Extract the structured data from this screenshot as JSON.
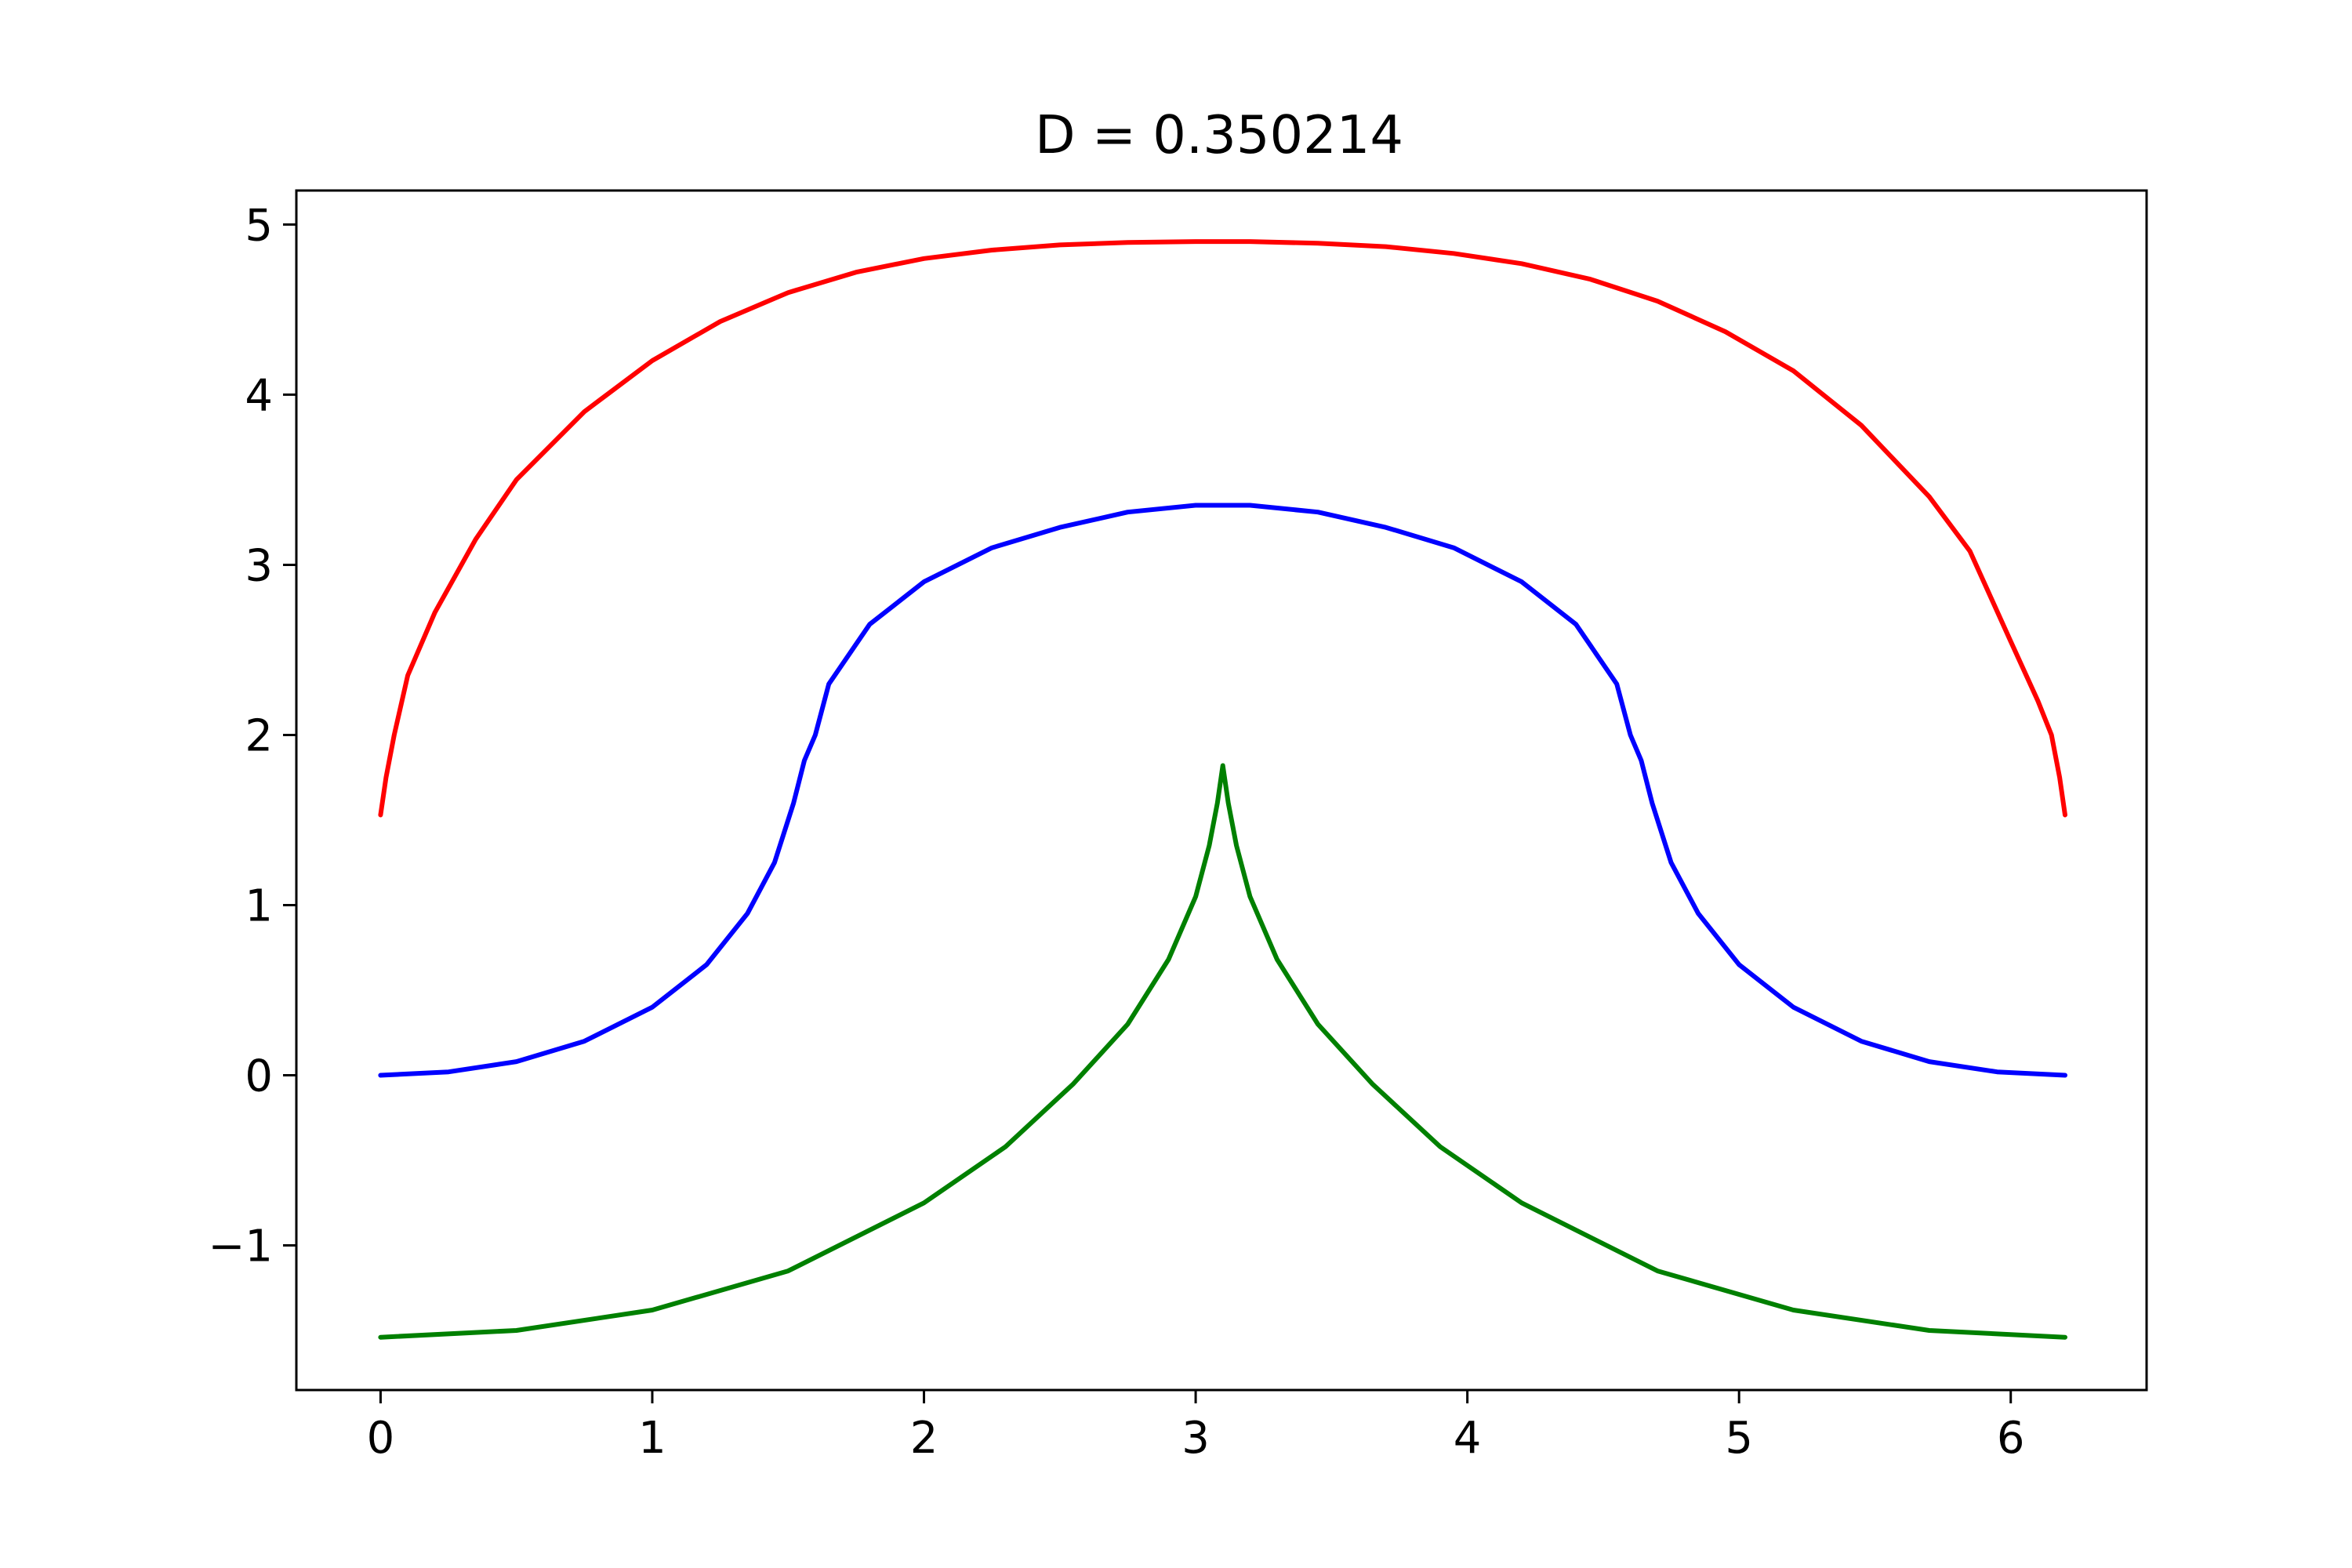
{
  "chart_data": {
    "type": "line",
    "title": "D = 0.350214",
    "xlabel": "",
    "ylabel": "",
    "xlim": [
      -0.31,
      6.5
    ],
    "ylim": [
      -1.85,
      5.2
    ],
    "x_ticks": [
      0,
      1,
      2,
      3,
      4,
      5,
      6
    ],
    "x_tick_labels": [
      "0",
      "1",
      "2",
      "3",
      "4",
      "5",
      "6"
    ],
    "y_ticks": [
      -1,
      0,
      1,
      2,
      3,
      4,
      5
    ],
    "y_tick_labels": [
      "−1",
      "0",
      "1",
      "2",
      "3",
      "4",
      "5"
    ],
    "grid": false,
    "legend": "none",
    "series": [
      {
        "color": "#ff0000",
        "x": [
          0,
          0.02,
          0.05,
          0.1,
          0.2,
          0.35,
          0.5,
          0.75,
          1.0,
          1.25,
          1.5,
          1.75,
          2.0,
          2.25,
          2.5,
          2.75,
          3.0,
          3.1,
          3.2,
          3.45,
          3.7,
          3.95,
          4.2,
          4.45,
          4.7,
          4.95,
          5.2,
          5.45,
          5.7,
          5.85,
          6.0,
          6.1,
          6.15,
          6.18,
          6.2
        ],
        "y": [
          1.53,
          1.75,
          2.0,
          2.35,
          2.72,
          3.15,
          3.5,
          3.9,
          4.2,
          4.43,
          4.6,
          4.72,
          4.8,
          4.85,
          4.88,
          4.895,
          4.9,
          4.9,
          4.9,
          4.89,
          4.87,
          4.83,
          4.77,
          4.68,
          4.55,
          4.37,
          4.14,
          3.82,
          3.4,
          3.08,
          2.55,
          2.2,
          2.0,
          1.75,
          1.53
        ]
      },
      {
        "color": "#0000ff",
        "x": [
          0,
          0.25,
          0.5,
          0.75,
          1.0,
          1.2,
          1.35,
          1.45,
          1.52,
          1.56,
          1.6,
          1.65,
          1.8,
          2.0,
          2.25,
          2.5,
          2.75,
          3.0,
          3.1,
          3.2,
          3.45,
          3.7,
          3.95,
          4.2,
          4.4,
          4.55,
          4.6,
          4.64,
          4.68,
          4.75,
          4.85,
          5.0,
          5.2,
          5.45,
          5.7,
          5.95,
          6.2
        ],
        "y": [
          0,
          0.02,
          0.08,
          0.2,
          0.4,
          0.65,
          0.95,
          1.25,
          1.6,
          1.85,
          2.0,
          2.3,
          2.65,
          2.9,
          3.1,
          3.22,
          3.31,
          3.35,
          3.35,
          3.35,
          3.31,
          3.22,
          3.1,
          2.9,
          2.65,
          2.3,
          2.0,
          1.85,
          1.6,
          1.25,
          0.95,
          0.65,
          0.4,
          0.2,
          0.08,
          0.02,
          0
        ]
      },
      {
        "color": "#008000",
        "x": [
          0,
          0.5,
          1.0,
          1.5,
          2.0,
          2.3,
          2.55,
          2.75,
          2.9,
          3.0,
          3.05,
          3.08,
          3.1,
          3.12,
          3.15,
          3.2,
          3.3,
          3.45,
          3.65,
          3.9,
          4.2,
          4.7,
          5.2,
          5.7,
          6.2
        ],
        "y": [
          -1.54,
          -1.5,
          -1.38,
          -1.15,
          -0.75,
          -0.42,
          -0.05,
          0.3,
          0.68,
          1.05,
          1.35,
          1.6,
          1.82,
          1.6,
          1.35,
          1.05,
          0.68,
          0.3,
          -0.05,
          -0.42,
          -0.75,
          -1.15,
          -1.38,
          -1.5,
          -1.54
        ]
      }
    ]
  }
}
